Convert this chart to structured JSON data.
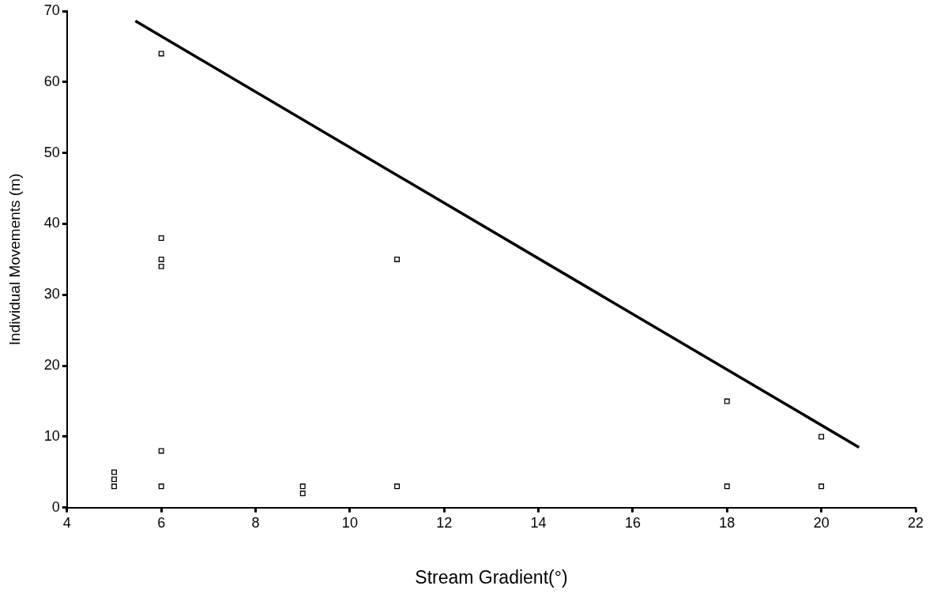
{
  "chart_data": {
    "type": "scatter",
    "xlabel": "Stream Gradient(°)",
    "ylabel": "Individual Movements (m)",
    "xlim": [
      4,
      22
    ],
    "xticks": [
      4,
      6,
      8,
      10,
      12,
      14,
      16,
      18,
      20,
      22
    ],
    "ylim": [
      0,
      70
    ],
    "yticks": [
      0,
      10,
      20,
      30,
      40,
      50,
      60,
      70
    ],
    "grid": false,
    "legend": false,
    "marker": "square",
    "series": [
      {
        "color": "#000000",
        "x": [
          5,
          5,
          5,
          6,
          6,
          6,
          6,
          6,
          6,
          9,
          9,
          11,
          11,
          18,
          18,
          20,
          20
        ],
        "values": [
          5,
          4,
          3,
          64,
          38,
          35,
          34,
          8,
          3,
          3,
          2,
          35,
          3,
          15,
          3,
          10,
          3
        ]
      },
      {
        "type": "line",
        "color": "#000000",
        "marker": "none",
        "x": [
          5.45,
          20.8
        ],
        "values": [
          68.6,
          8.5
        ]
      }
    ]
  }
}
